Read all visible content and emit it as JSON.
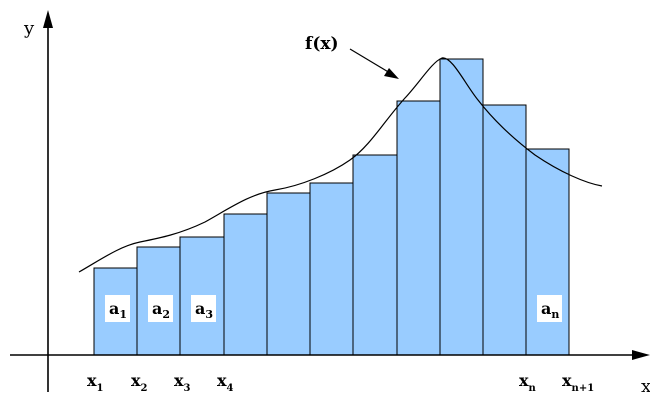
{
  "diagram": {
    "axis_labels": {
      "y": "y",
      "x": "x"
    },
    "curve_label": "f(x)",
    "x_ticks": [
      {
        "base": "x",
        "sub": "1"
      },
      {
        "base": "x",
        "sub": "2"
      },
      {
        "base": "x",
        "sub": "3"
      },
      {
        "base": "x",
        "sub": "4"
      },
      {
        "base": "x",
        "sub": "n"
      },
      {
        "base": "x",
        "sub": "n+1"
      }
    ],
    "area_labels": [
      {
        "base": "a",
        "sub": "1"
      },
      {
        "base": "a",
        "sub": "2"
      },
      {
        "base": "a",
        "sub": "3"
      },
      {
        "base": "a",
        "sub": "n"
      }
    ],
    "colors": {
      "bar_fill": "#99CCFF",
      "bar_stroke": "#000000",
      "curve": "#000000",
      "axis": "#000000",
      "label_box": "#FFFFFF"
    }
  }
}
